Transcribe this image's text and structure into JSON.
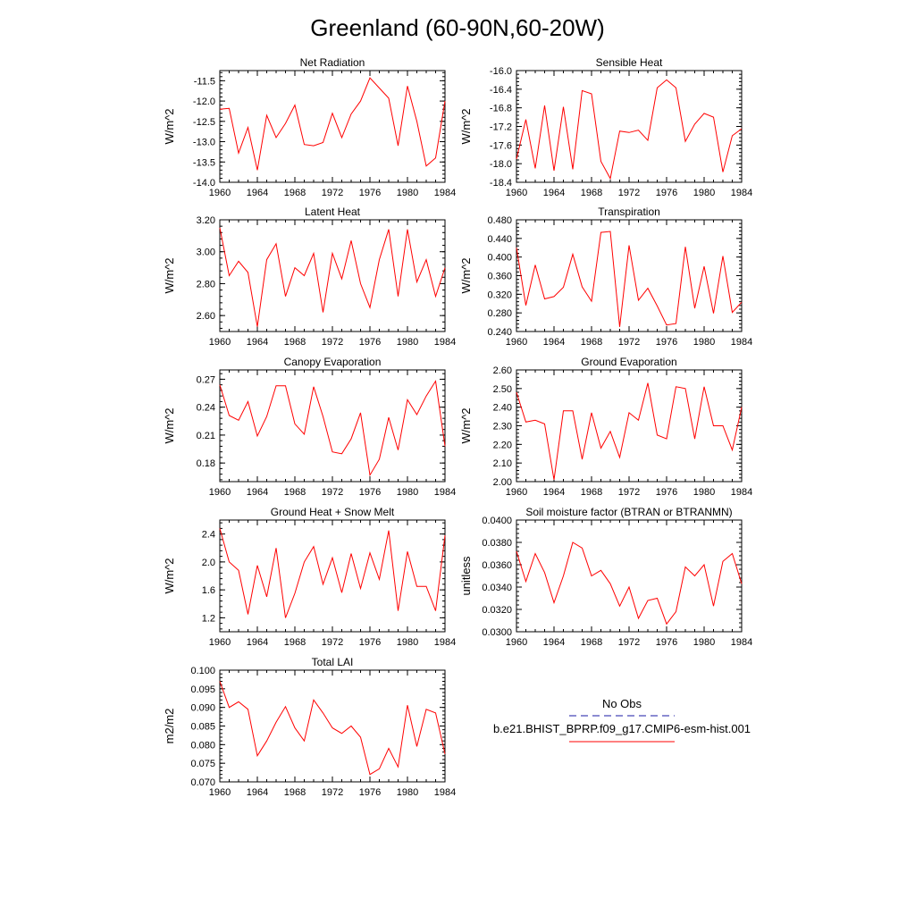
{
  "title": "Greenland (60-90N,60-20W)",
  "chart_data": [
    {
      "type": "line",
      "title": "Net Radiation",
      "ylabel": "W/m^2",
      "x": [
        1960,
        1961,
        1962,
        1963,
        1964,
        1965,
        1966,
        1967,
        1968,
        1969,
        1970,
        1971,
        1972,
        1973,
        1974,
        1975,
        1976,
        1977,
        1978,
        1979,
        1980,
        1981,
        1982,
        1983,
        1984
      ],
      "values": [
        -12.2,
        -12.18,
        -13.28,
        -12.65,
        -13.7,
        -12.35,
        -12.9,
        -12.55,
        -12.1,
        -13.07,
        -13.1,
        -13.02,
        -12.3,
        -12.9,
        -12.32,
        -12.0,
        -11.43,
        -11.68,
        -11.93,
        -13.1,
        -11.63,
        -12.5,
        -13.6,
        -13.4,
        -12.0
      ],
      "xlim": [
        1960,
        1984
      ],
      "ylim": [
        -14.0,
        -11.25
      ],
      "xticks": [
        "1960",
        "1964",
        "1968",
        "1972",
        "1976",
        "1980",
        "1984"
      ],
      "yticks": [
        "-14.0",
        "-13.5",
        "-13.0",
        "-12.5",
        "-12.0",
        "-11.5"
      ],
      "grid": false,
      "color": "#ff0000"
    },
    {
      "type": "line",
      "title": "Sensible Heat",
      "ylabel": "W/m^2",
      "x": [
        1960,
        1961,
        1962,
        1963,
        1964,
        1965,
        1966,
        1967,
        1968,
        1969,
        1970,
        1971,
        1972,
        1973,
        1974,
        1975,
        1976,
        1977,
        1978,
        1979,
        1980,
        1981,
        1982,
        1983,
        1984
      ],
      "values": [
        -17.9,
        -17.05,
        -18.1,
        -16.75,
        -18.15,
        -16.78,
        -18.12,
        -16.43,
        -16.5,
        -17.95,
        -18.32,
        -17.3,
        -17.33,
        -17.28,
        -17.5,
        -16.37,
        -16.2,
        -16.37,
        -17.52,
        -17.15,
        -16.92,
        -17.0,
        -18.18,
        -17.4,
        -17.25
      ],
      "xlim": [
        1960,
        1984
      ],
      "ylim": [
        -18.4,
        -16.0
      ],
      "xticks": [
        "1960",
        "1964",
        "1968",
        "1972",
        "1976",
        "1980",
        "1984"
      ],
      "yticks": [
        "-18.4",
        "-18.0",
        "-17.6",
        "-17.2",
        "-16.8",
        "-16.4",
        "-16.0"
      ],
      "grid": false,
      "color": "#ff0000"
    },
    {
      "type": "line",
      "title": "Latent Heat",
      "ylabel": "W/m^2",
      "x": [
        1960,
        1961,
        1962,
        1963,
        1964,
        1965,
        1966,
        1967,
        1968,
        1969,
        1970,
        1971,
        1972,
        1973,
        1974,
        1975,
        1976,
        1977,
        1978,
        1979,
        1980,
        1981,
        1982,
        1983,
        1984
      ],
      "values": [
        3.15,
        2.85,
        2.94,
        2.87,
        2.53,
        2.95,
        3.05,
        2.72,
        2.9,
        2.85,
        2.99,
        2.62,
        2.99,
        2.83,
        3.07,
        2.8,
        2.65,
        2.95,
        3.14,
        2.72,
        3.14,
        2.81,
        2.95,
        2.72,
        2.9
      ],
      "xlim": [
        1960,
        1984
      ],
      "ylim": [
        2.5,
        3.2
      ],
      "xticks": [
        "1960",
        "1964",
        "1968",
        "1972",
        "1976",
        "1980",
        "1984"
      ],
      "yticks": [
        "2.60",
        "2.80",
        "3.00",
        "3.20"
      ],
      "grid": false,
      "color": "#ff0000"
    },
    {
      "type": "line",
      "title": "Transpiration",
      "ylabel": "W/m^2",
      "x": [
        1960,
        1961,
        1962,
        1963,
        1964,
        1965,
        1966,
        1967,
        1968,
        1969,
        1970,
        1971,
        1972,
        1973,
        1974,
        1975,
        1976,
        1977,
        1978,
        1979,
        1980,
        1981,
        1982,
        1983,
        1984
      ],
      "values": [
        0.42,
        0.296,
        0.383,
        0.31,
        0.315,
        0.335,
        0.406,
        0.336,
        0.305,
        0.453,
        0.455,
        0.25,
        0.425,
        0.307,
        0.333,
        0.295,
        0.254,
        0.257,
        0.422,
        0.29,
        0.38,
        0.279,
        0.402,
        0.281,
        0.303
      ],
      "xlim": [
        1960,
        1984
      ],
      "ylim": [
        0.24,
        0.48
      ],
      "xticks": [
        "1960",
        "1964",
        "1968",
        "1972",
        "1976",
        "1980",
        "1984"
      ],
      "yticks": [
        "0.240",
        "0.280",
        "0.320",
        "0.360",
        "0.400",
        "0.440",
        "0.480"
      ],
      "grid": false,
      "color": "#ff0000"
    },
    {
      "type": "line",
      "title": "Canopy Evaporation",
      "ylabel": "W/m^2",
      "x": [
        1960,
        1961,
        1962,
        1963,
        1964,
        1965,
        1966,
        1967,
        1968,
        1969,
        1970,
        1971,
        1972,
        1973,
        1974,
        1975,
        1976,
        1977,
        1978,
        1979,
        1980,
        1981,
        1982,
        1983,
        1984
      ],
      "values": [
        0.264,
        0.231,
        0.226,
        0.246,
        0.209,
        0.23,
        0.263,
        0.263,
        0.222,
        0.211,
        0.262,
        0.23,
        0.192,
        0.19,
        0.206,
        0.234,
        0.167,
        0.184,
        0.229,
        0.194,
        0.248,
        0.232,
        0.252,
        0.268,
        0.198
      ],
      "xlim": [
        1960,
        1984
      ],
      "ylim": [
        0.16,
        0.28
      ],
      "xticks": [
        "1960",
        "1964",
        "1968",
        "1972",
        "1976",
        "1980",
        "1984"
      ],
      "yticks": [
        "0.18",
        "0.21",
        "0.24",
        "0.27"
      ],
      "grid": false,
      "color": "#ff0000"
    },
    {
      "type": "line",
      "title": "Ground Evaporation",
      "ylabel": "W/m^2",
      "x": [
        1960,
        1961,
        1962,
        1963,
        1964,
        1965,
        1966,
        1967,
        1968,
        1969,
        1970,
        1971,
        1972,
        1973,
        1974,
        1975,
        1976,
        1977,
        1978,
        1979,
        1980,
        1981,
        1982,
        1983,
        1984
      ],
      "values": [
        2.48,
        2.32,
        2.33,
        2.31,
        2.01,
        2.38,
        2.38,
        2.12,
        2.37,
        2.18,
        2.27,
        2.13,
        2.37,
        2.33,
        2.53,
        2.25,
        2.23,
        2.51,
        2.5,
        2.23,
        2.51,
        2.3,
        2.3,
        2.17,
        2.4
      ],
      "xlim": [
        1960,
        1984
      ],
      "ylim": [
        2.0,
        2.6
      ],
      "xticks": [
        "1960",
        "1964",
        "1968",
        "1972",
        "1976",
        "1980",
        "1984"
      ],
      "yticks": [
        "2.00",
        "2.10",
        "2.20",
        "2.30",
        "2.40",
        "2.50",
        "2.60"
      ],
      "grid": false,
      "color": "#ff0000"
    },
    {
      "type": "line",
      "title": "Ground Heat + Snow Melt",
      "ylabel": "W/m^2",
      "x": [
        1960,
        1961,
        1962,
        1963,
        1964,
        1965,
        1966,
        1967,
        1968,
        1969,
        1970,
        1971,
        1972,
        1973,
        1974,
        1975,
        1976,
        1977,
        1978,
        1979,
        1980,
        1981,
        1982,
        1983,
        1984
      ],
      "values": [
        2.48,
        2.0,
        1.88,
        1.25,
        1.95,
        1.5,
        2.2,
        1.2,
        1.55,
        2.0,
        2.22,
        1.68,
        2.06,
        1.56,
        2.12,
        1.62,
        2.13,
        1.75,
        2.45,
        1.3,
        2.15,
        1.65,
        1.65,
        1.3,
        2.38
      ],
      "xlim": [
        1960,
        1984
      ],
      "ylim": [
        1.0,
        2.6
      ],
      "xticks": [
        "1960",
        "1964",
        "1968",
        "1972",
        "1976",
        "1980",
        "1984"
      ],
      "yticks": [
        "1.2",
        "1.6",
        "2.0",
        "2.4"
      ],
      "grid": false,
      "color": "#ff0000"
    },
    {
      "type": "line",
      "title": "Soil moisture factor (BTRAN or BTRANMN)",
      "ylabel": "unitless",
      "x": [
        1960,
        1961,
        1962,
        1963,
        1964,
        1965,
        1966,
        1967,
        1968,
        1969,
        1970,
        1971,
        1972,
        1973,
        1974,
        1975,
        1976,
        1977,
        1978,
        1979,
        1980,
        1981,
        1982,
        1983,
        1984
      ],
      "values": [
        0.0372,
        0.0345,
        0.037,
        0.0353,
        0.0326,
        0.035,
        0.038,
        0.0375,
        0.035,
        0.0355,
        0.0343,
        0.0323,
        0.034,
        0.0312,
        0.0328,
        0.033,
        0.0307,
        0.0318,
        0.0358,
        0.035,
        0.036,
        0.0323,
        0.0363,
        0.037,
        0.0343
      ],
      "xlim": [
        1960,
        1984
      ],
      "ylim": [
        0.03,
        0.04
      ],
      "xticks": [
        "1960",
        "1964",
        "1968",
        "1972",
        "1976",
        "1980",
        "1984"
      ],
      "yticks": [
        "0.0300",
        "0.0320",
        "0.0340",
        "0.0360",
        "0.0380",
        "0.0400"
      ],
      "grid": false,
      "color": "#ff0000"
    },
    {
      "type": "line",
      "title": "Total LAI",
      "ylabel": "m2/m2",
      "x": [
        1960,
        1961,
        1962,
        1963,
        1964,
        1965,
        1966,
        1967,
        1968,
        1969,
        1970,
        1971,
        1972,
        1973,
        1974,
        1975,
        1976,
        1977,
        1978,
        1979,
        1980,
        1981,
        1982,
        1983,
        1984
      ],
      "values": [
        0.097,
        0.09,
        0.0915,
        0.0895,
        0.077,
        0.081,
        0.086,
        0.0902,
        0.0845,
        0.081,
        0.092,
        0.0885,
        0.0845,
        0.083,
        0.085,
        0.082,
        0.072,
        0.0735,
        0.079,
        0.074,
        0.0906,
        0.0795,
        0.0895,
        0.0885,
        0.0775
      ],
      "xlim": [
        1960,
        1984
      ],
      "ylim": [
        0.07,
        0.1
      ],
      "xticks": [
        "1960",
        "1964",
        "1968",
        "1972",
        "1976",
        "1980",
        "1984"
      ],
      "yticks": [
        "0.070",
        "0.075",
        "0.080",
        "0.085",
        "0.090",
        "0.095",
        "0.100"
      ],
      "grid": false,
      "color": "#ff0000"
    }
  ],
  "legend": {
    "items": [
      {
        "label": "No Obs",
        "color": "#1a1aa6",
        "style": "dashed"
      },
      {
        "label": "b.e21.BHIST_BPRP.f09_g17.CMIP6-esm-hist.001",
        "color": "#ff0000",
        "style": "solid"
      }
    ]
  }
}
